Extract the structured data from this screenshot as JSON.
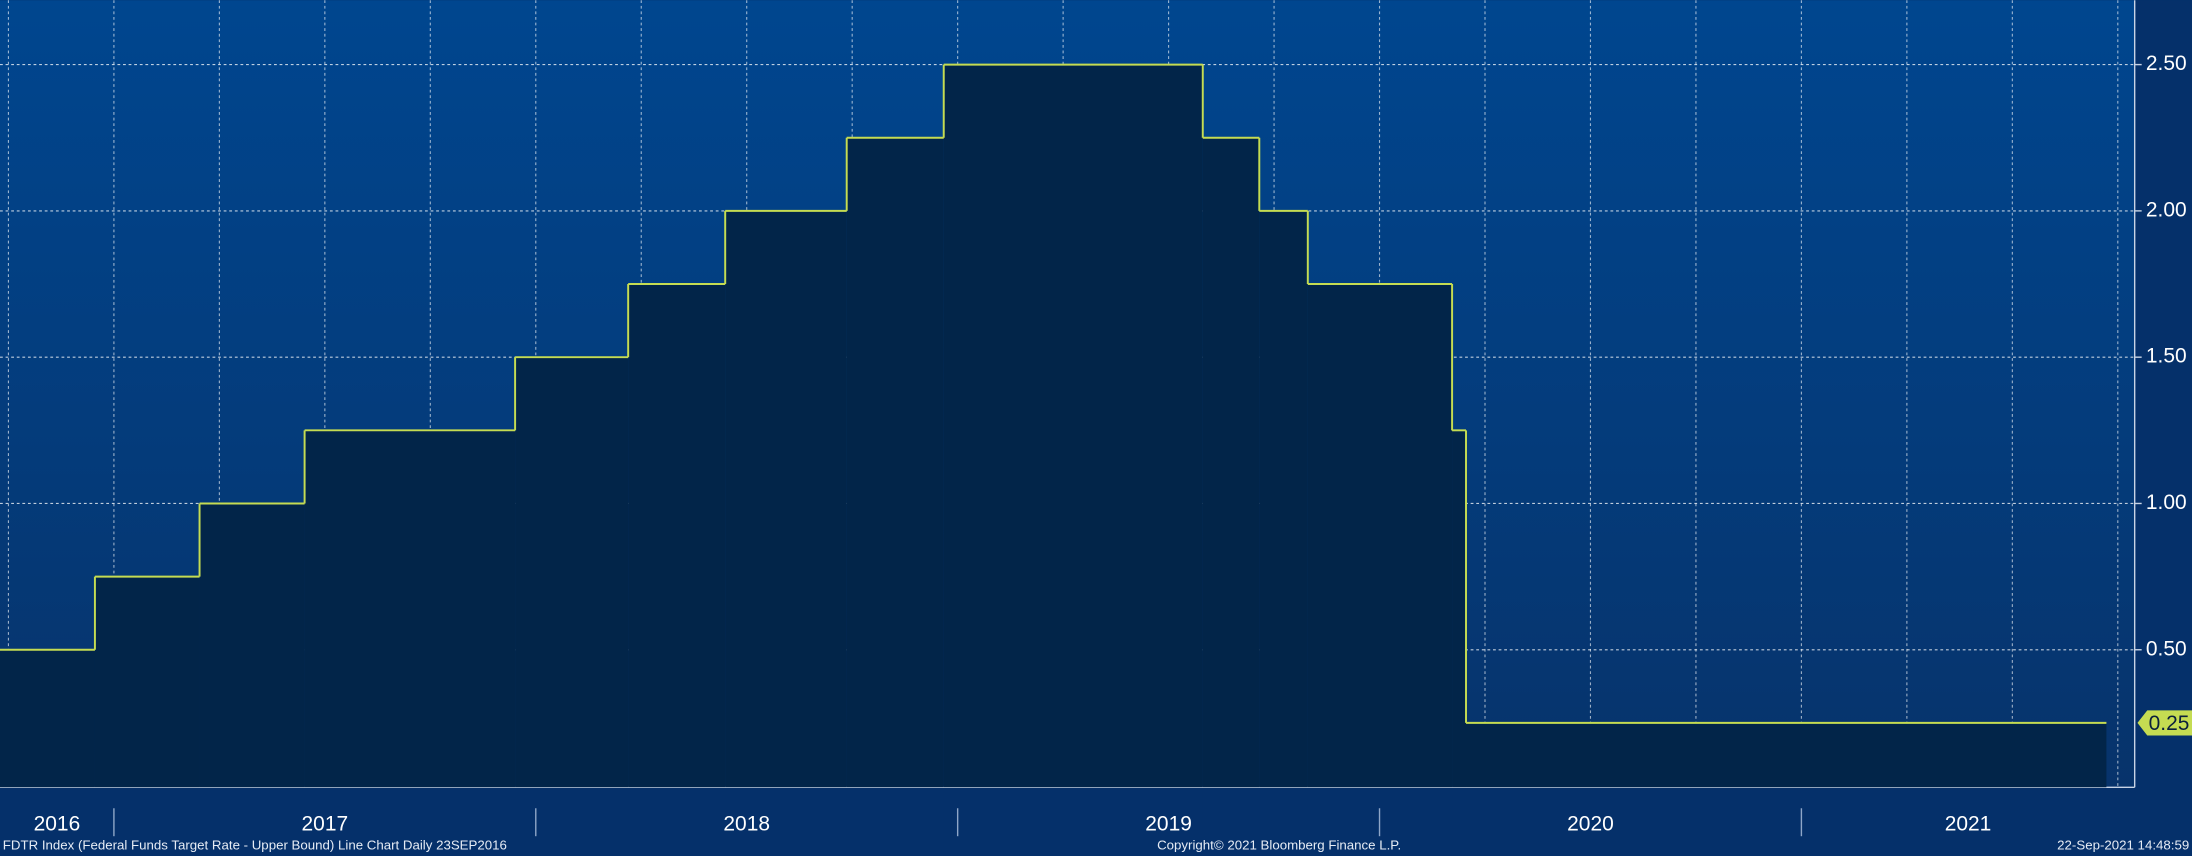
{
  "chart_data": {
    "type": "step",
    "x": [
      2016.727,
      2016.955,
      2017.203,
      2017.452,
      2017.951,
      2018.219,
      2018.449,
      2018.737,
      2018.967,
      2019.581,
      2019.715,
      2019.83,
      2020.172,
      2020.205,
      2021.723
    ],
    "series": [
      {
        "name": "FDTR Index",
        "color": "#c5dc52",
        "values": [
          0.5,
          0.75,
          1.0,
          1.25,
          1.5,
          1.75,
          2.0,
          2.25,
          2.5,
          2.25,
          2.0,
          1.75,
          1.25,
          0.25,
          0.25
        ]
      }
    ],
    "xlim": [
      2016.73,
      2021.79
    ],
    "xticks": [
      2016,
      2017,
      2018,
      2019,
      2020,
      2021
    ],
    "ylim": [
      0.03,
      2.72
    ],
    "yticks": [
      {
        "value": 0.5,
        "label": "0.50"
      },
      {
        "value": 1.0,
        "label": "1.00"
      },
      {
        "value": 1.5,
        "label": "1.50"
      },
      {
        "value": 2.0,
        "label": "2.00"
      },
      {
        "value": 2.5,
        "label": "2.50"
      }
    ],
    "grid": true
  },
  "footer": {
    "left": "FDTR Index (Federal Funds Target Rate - Upper Bound) Line Chart  Daily 23SEP2016",
    "center": "Copyright© 2021 Bloomberg Finance L.P.",
    "right": "22-Sep-2021 14:48:59"
  }
}
